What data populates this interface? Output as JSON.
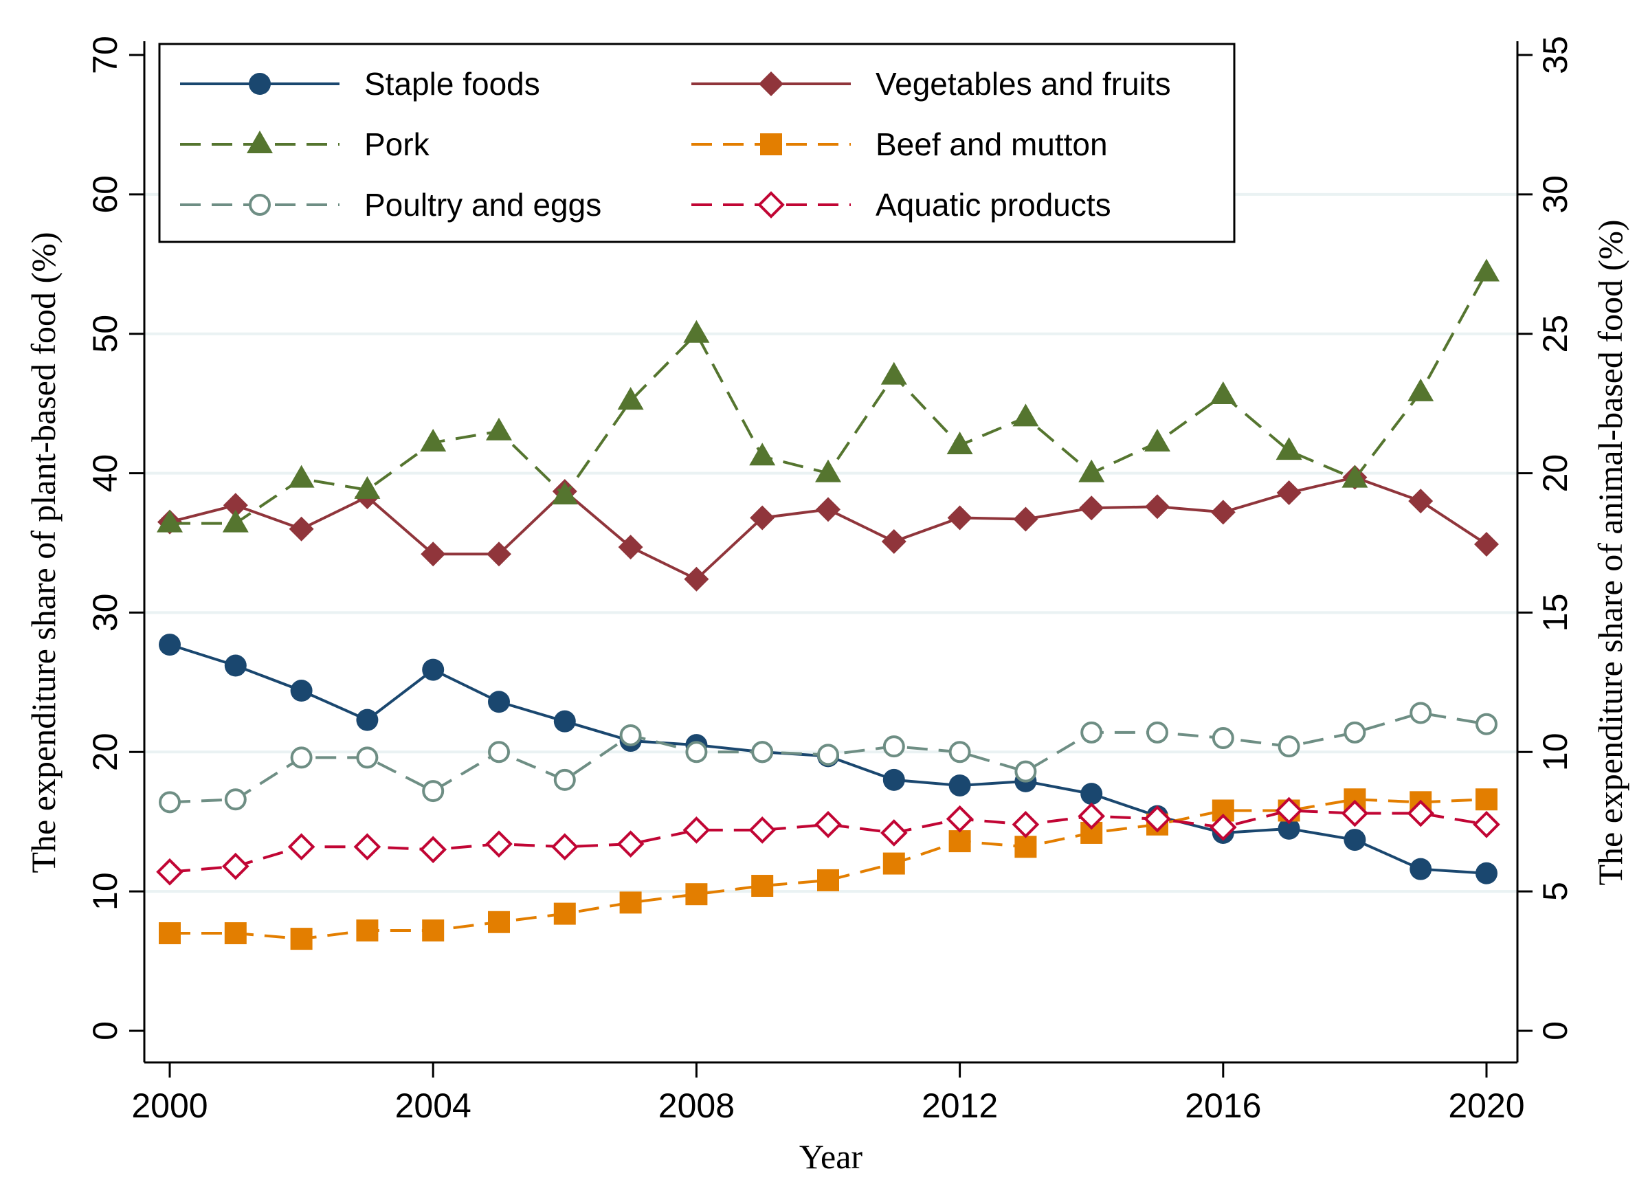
{
  "chart_data": {
    "type": "line",
    "xlabel": "Year",
    "ylabel_left": "The expenditure share of plant-based food (%)",
    "ylabel_right": "The expenditure share of animal-based food (%)",
    "x": [
      2000,
      2001,
      2002,
      2003,
      2004,
      2005,
      2006,
      2007,
      2008,
      2009,
      2010,
      2011,
      2012,
      2013,
      2014,
      2015,
      2016,
      2017,
      2018,
      2019,
      2020
    ],
    "xlim": [
      2000,
      2020
    ],
    "xticks": [
      2000,
      2004,
      2008,
      2012,
      2016,
      2020
    ],
    "ylim_left": [
      0,
      70
    ],
    "yticks_left": [
      0,
      10,
      20,
      30,
      40,
      50,
      60,
      70
    ],
    "ylim_right": [
      0,
      35
    ],
    "yticks_right": [
      0,
      5,
      10,
      15,
      20,
      25,
      30,
      35
    ],
    "grid": true,
    "legend_position": "top-left (two columns)",
    "series": [
      {
        "name": "Staple foods",
        "axis": "left",
        "color": "#1a476f",
        "line_style": "solid",
        "marker": "filled-circle",
        "values": [
          27.7,
          26.2,
          24.4,
          22.3,
          25.9,
          23.6,
          22.2,
          20.8,
          20.5,
          20.0,
          19.7,
          18.0,
          17.6,
          17.9,
          17.0,
          15.4,
          14.2,
          14.5,
          13.7,
          11.6,
          11.3
        ]
      },
      {
        "name": "Vegetables and fruits",
        "axis": "left",
        "color": "#90353b",
        "line_style": "solid",
        "marker": "filled-diamond",
        "values": [
          36.5,
          37.7,
          36.0,
          38.3,
          34.2,
          34.2,
          38.7,
          34.7,
          32.4,
          36.8,
          37.4,
          35.1,
          36.8,
          36.7,
          37.5,
          37.6,
          37.2,
          38.6,
          39.7,
          38.0,
          34.9
        ]
      },
      {
        "name": "Pork",
        "axis": "right",
        "color": "#55752f",
        "line_style": "dashed",
        "marker": "filled-triangle",
        "values": [
          18.2,
          18.2,
          19.8,
          19.4,
          21.1,
          21.5,
          19.2,
          22.6,
          25.0,
          20.6,
          20.0,
          23.5,
          21.0,
          22.0,
          20.0,
          21.1,
          22.8,
          20.8,
          19.8,
          22.9,
          27.2
        ]
      },
      {
        "name": "Beef and mutton",
        "axis": "right",
        "color": "#e37e00",
        "line_style": "dashed",
        "marker": "filled-square",
        "values": [
          3.5,
          3.5,
          3.3,
          3.6,
          3.6,
          3.9,
          4.2,
          4.6,
          4.9,
          5.2,
          5.4,
          6.0,
          6.8,
          6.6,
          7.1,
          7.4,
          7.9,
          7.9,
          8.3,
          8.2,
          8.3
        ]
      },
      {
        "name": "Poultry and eggs",
        "axis": "right",
        "color": "#6e8e84",
        "line_style": "dashed",
        "marker": "hollow-circle",
        "values": [
          8.2,
          8.3,
          9.8,
          9.8,
          8.6,
          10.0,
          9.0,
          10.6,
          10.0,
          10.0,
          9.9,
          10.2,
          10.0,
          9.3,
          10.7,
          10.7,
          10.5,
          10.2,
          10.7,
          11.4,
          11.0
        ]
      },
      {
        "name": "Aquatic products",
        "axis": "right",
        "color": "#c10534",
        "line_style": "dashed",
        "marker": "hollow-diamond",
        "values": [
          5.7,
          5.9,
          6.6,
          6.6,
          6.5,
          6.7,
          6.6,
          6.7,
          7.2,
          7.2,
          7.4,
          7.1,
          7.6,
          7.4,
          7.7,
          7.6,
          7.3,
          7.9,
          7.8,
          7.8,
          7.4
        ]
      }
    ]
  }
}
